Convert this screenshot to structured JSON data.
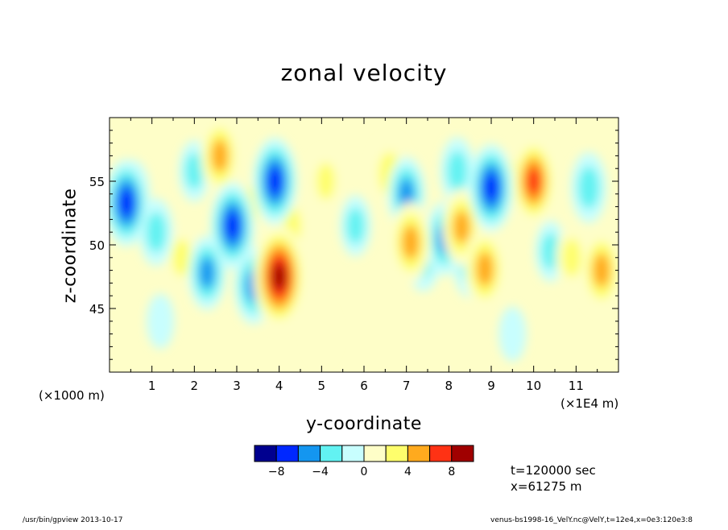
{
  "chart_data": {
    "type": "heatmap",
    "title": "zonal velocity",
    "xlabel": "y-coordinate",
    "ylabel": "z-coordinate",
    "x_multiplier_label": "(×1E4 m)",
    "y_multiplier_label": "(×1000 m)",
    "xlim": [
      0,
      12
    ],
    "ylim": [
      40,
      60
    ],
    "x_ticks": [
      1,
      2,
      3,
      4,
      5,
      6,
      7,
      8,
      9,
      10,
      11
    ],
    "y_ticks": [
      45,
      50,
      55
    ],
    "color_levels": [
      -10,
      -8,
      -6,
      -4,
      -2,
      0,
      2,
      4,
      6,
      8,
      10
    ],
    "colorbar_labels": [
      -8,
      -4,
      0,
      4,
      8
    ],
    "colors": [
      "#00008f",
      "#0028ff",
      "#1496f0",
      "#62f2f2",
      "#c8fefe",
      "#fefec8",
      "#fefe6c",
      "#ffaa1e",
      "#ff3214",
      "#a00000"
    ],
    "features": [
      {
        "y": 0.4,
        "z": 53.3,
        "value": -6.5
      },
      {
        "y": 0.55,
        "z": 54.0,
        "value": -3.5
      },
      {
        "y": 1.1,
        "z": 51.0,
        "value": -3.5
      },
      {
        "y": 1.7,
        "z": 49.0,
        "value": 2.5
      },
      {
        "y": 2.0,
        "z": 55.8,
        "value": -2.5
      },
      {
        "y": 2.6,
        "z": 57.0,
        "value": 5.0
      },
      {
        "y": 2.9,
        "z": 51.5,
        "value": -6.5
      },
      {
        "y": 2.3,
        "z": 47.8,
        "value": -4.5
      },
      {
        "y": 3.4,
        "z": 46.8,
        "value": -5.0
      },
      {
        "y": 3.3,
        "z": 53.0,
        "value": 2.5
      },
      {
        "y": 3.9,
        "z": 55.0,
        "value": -6.5
      },
      {
        "y": 4.0,
        "z": 47.5,
        "value": 9.0
      },
      {
        "y": 4.3,
        "z": 51.5,
        "value": 2.5
      },
      {
        "y": 5.1,
        "z": 55.0,
        "value": 2.5
      },
      {
        "y": 5.8,
        "z": 51.5,
        "value": -2.5
      },
      {
        "y": 6.6,
        "z": 55.6,
        "value": 4.0
      },
      {
        "y": 7.0,
        "z": 54.0,
        "value": -4.5
      },
      {
        "y": 7.1,
        "z": 50.2,
        "value": 5.5
      },
      {
        "y": 7.4,
        "z": 49.0,
        "value": -3.5
      },
      {
        "y": 7.9,
        "z": 50.5,
        "value": -4.5
      },
      {
        "y": 8.3,
        "z": 51.4,
        "value": 5.0
      },
      {
        "y": 8.2,
        "z": 55.8,
        "value": -3.5
      },
      {
        "y": 8.5,
        "z": 48.5,
        "value": -3.5
      },
      {
        "y": 8.85,
        "z": 48.1,
        "value": 5.5
      },
      {
        "y": 9.0,
        "z": 54.5,
        "value": -6.5
      },
      {
        "y": 9.5,
        "z": 55.0,
        "value": 3.0
      },
      {
        "y": 10.0,
        "z": 55.0,
        "value": 6.5
      },
      {
        "y": 10.4,
        "z": 49.5,
        "value": -2.5
      },
      {
        "y": 10.9,
        "z": 49.0,
        "value": 3.0
      },
      {
        "y": 11.3,
        "z": 54.5,
        "value": -4.0
      },
      {
        "y": 11.6,
        "z": 48.0,
        "value": 5.5
      },
      {
        "y": 1.2,
        "z": 44.0,
        "value": -1.5
      },
      {
        "y": 5.0,
        "z": 43.0,
        "value": 1.5
      },
      {
        "y": 9.5,
        "z": 43.0,
        "value": -1.5
      }
    ]
  },
  "annotations": {
    "time": "t=120000 sec",
    "x_position": "x=61275 m",
    "footer_left": "/usr/bin/gpview  2013-10-17",
    "footer_right": "venus-bs1998-16_VelY.nc@VelY,t=12e4,x=0e3:120e3:8"
  }
}
